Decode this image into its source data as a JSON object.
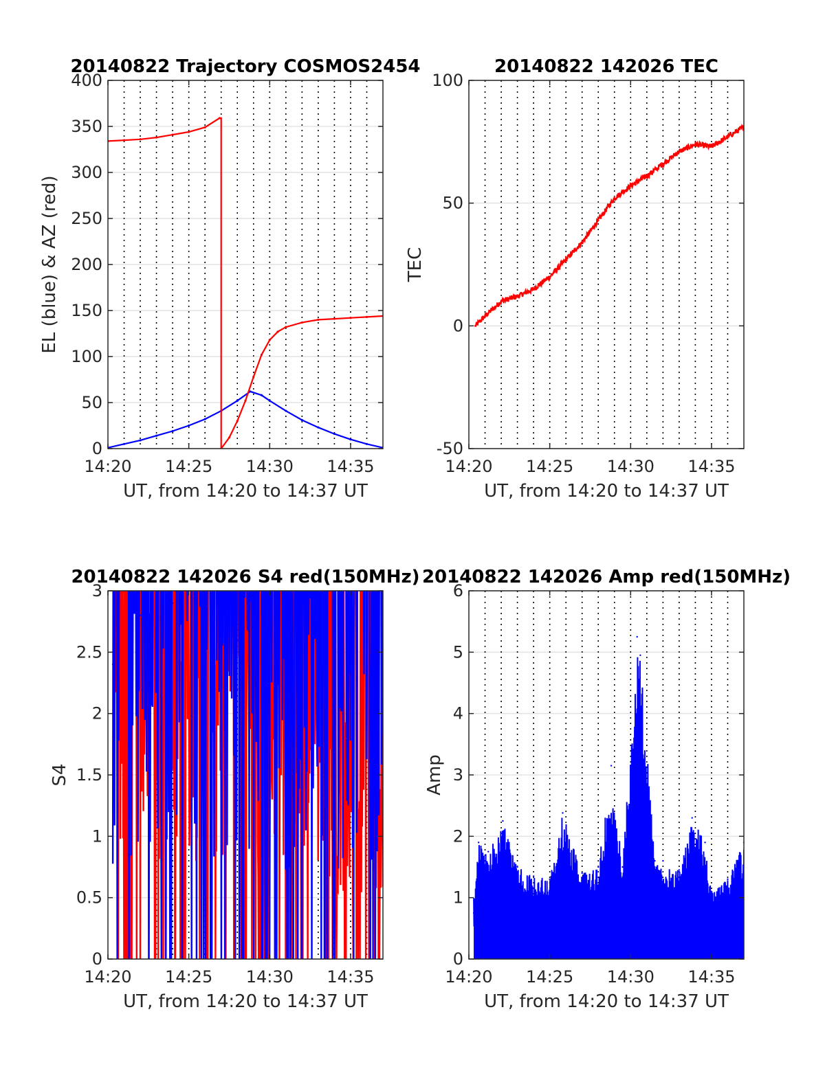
{
  "chart_data": [
    {
      "type": "line",
      "title": "20140822 Trajectory COSMOS2454",
      "xlabel": "UT, from 14:20 to 14:37 UT",
      "ylabel": "EL (blue) & AZ (red)",
      "xlim": [
        0,
        17
      ],
      "ylim": [
        0,
        400
      ],
      "x_ticks": [
        "14:20",
        "14:25",
        "14:30",
        "14:35"
      ],
      "y_ticks": [
        "0",
        "50",
        "100",
        "150",
        "200",
        "250",
        "300",
        "350",
        "400"
      ],
      "grid": true,
      "series": [
        {
          "name": "EL",
          "color": "#0000ff",
          "x": [
            "14:20",
            "14:21",
            "14:22",
            "14:23",
            "14:24",
            "14:25",
            "14:26",
            "14:27",
            "14:28",
            "14:28.8",
            "14:29.5",
            "14:30",
            "14:31",
            "14:32",
            "14:33",
            "14:34",
            "14:35",
            "14:36",
            "14:37"
          ],
          "values": [
            1,
            5,
            9,
            14,
            19,
            25,
            32,
            41,
            52,
            62,
            58,
            52,
            41,
            31,
            23,
            16,
            10,
            5,
            1
          ]
        },
        {
          "name": "AZ",
          "color": "#ff0000",
          "x": [
            "14:20",
            "14:21",
            "14:22",
            "14:23",
            "14:24",
            "14:25",
            "14:26",
            "14:26.9",
            "14:27",
            "14:27.5",
            "14:28",
            "14:28.5",
            "14:29",
            "14:29.5",
            "14:30",
            "14:30.5",
            "14:31",
            "14:32",
            "14:33",
            "14:34",
            "14:35",
            "14:36",
            "14:37"
          ],
          "values": [
            334,
            335,
            336,
            338,
            341,
            344,
            349,
            359,
            0,
            12,
            30,
            52,
            78,
            102,
            118,
            127,
            132,
            137,
            140,
            141,
            142,
            143,
            144
          ]
        }
      ]
    },
    {
      "type": "line",
      "title": "20140822 142026 TEC",
      "xlabel": "UT, from 14:20 to 14:37 UT",
      "ylabel": "TEC",
      "xlim": [
        0,
        17
      ],
      "ylim": [
        -50,
        100
      ],
      "x_ticks": [
        "14:20",
        "14:25",
        "14:30",
        "14:35"
      ],
      "y_ticks": [
        "-50",
        "0",
        "50",
        "100"
      ],
      "grid": true,
      "series": [
        {
          "name": "TEC",
          "color": "#ff0000",
          "x": [
            "14:20.4",
            "14:21",
            "14:22",
            "14:23",
            "14:24",
            "14:25",
            "14:26",
            "14:27",
            "14:28",
            "14:29",
            "14:30",
            "14:31",
            "14:32",
            "14:33",
            "14:34",
            "14:35",
            "14:36",
            "14:37"
          ],
          "values": [
            0,
            4,
            10,
            12,
            15,
            20,
            27,
            34,
            43,
            52,
            57,
            61,
            66,
            71,
            74,
            73,
            77,
            81
          ]
        }
      ]
    },
    {
      "type": "line",
      "title": "20140822 142026 S4 red(150MHz)",
      "xlabel": "UT, from 14:20 to 14:37 UT",
      "ylabel": "S4",
      "xlim": [
        0,
        17
      ],
      "ylim": [
        0,
        3
      ],
      "x_ticks": [
        "14:20",
        "14:25",
        "14:30",
        "14:35"
      ],
      "y_ticks": [
        "0",
        "0.5",
        "1",
        "1.5",
        "2",
        "2.5",
        "3"
      ],
      "grid": true,
      "series": [
        {
          "name": "S4 red",
          "color": "#ff0000",
          "x": [
            "14:20.3",
            "14:22",
            "14:24",
            "14:26",
            "14:28",
            "14:30",
            "14:31",
            "14:32",
            "14:33",
            "14:34",
            "14:35",
            "14:36",
            "14:37"
          ],
          "values": [
            2.0,
            2.5,
            2.6,
            2.4,
            2.2,
            1.9,
            1.8,
            1.7,
            1.9,
            1.6,
            1.7,
            1.8,
            1.7
          ]
        },
        {
          "name": "S4 blue",
          "color": "#0000ff",
          "x": [
            "14:20.3",
            "14:22",
            "14:24",
            "14:26",
            "14:28",
            "14:30",
            "14:31",
            "14:32",
            "14:33",
            "14:34",
            "14:35",
            "14:36",
            "14:37"
          ],
          "values": [
            2.4,
            2.8,
            2.9,
            2.7,
            2.6,
            2.5,
            2.4,
            2.5,
            2.6,
            2.2,
            2.4,
            2.6,
            2.5
          ]
        }
      ]
    },
    {
      "type": "line",
      "title": "20140822 142026 Amp red(150MHz)",
      "xlabel": "UT, from 14:20 to 14:37 UT",
      "ylabel": "Amp",
      "xlim": [
        0,
        17
      ],
      "ylim": [
        0,
        6
      ],
      "x_ticks": [
        "14:20",
        "14:25",
        "14:30",
        "14:35"
      ],
      "y_ticks": [
        "0",
        "1",
        "2",
        "3",
        "4",
        "5",
        "6"
      ],
      "grid": true,
      "series": [
        {
          "name": "Amp",
          "color": "#0000ff",
          "x": [
            "14:20.3",
            "14:20.6",
            "14:21.2",
            "14:22.1",
            "14:23",
            "14:24",
            "14:25",
            "14:25.8",
            "14:27",
            "14:28",
            "14:28.8",
            "14:29.5",
            "14:30.4",
            "14:30.6",
            "14:31.5",
            "14:32",
            "14:33",
            "14:33.8",
            "14:34.6",
            "14:35",
            "14:36",
            "14:37"
          ],
          "values": [
            0.75,
            1.9,
            1.75,
            2.25,
            1.5,
            1.35,
            1.3,
            2.38,
            1.4,
            1.5,
            3.15,
            1.5,
            5.25,
            4.95,
            1.6,
            1.6,
            1.45,
            2.3,
            1.9,
            1.1,
            1.3,
            1.9
          ]
        }
      ]
    }
  ]
}
